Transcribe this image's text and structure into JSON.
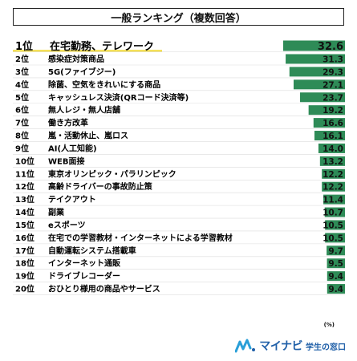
{
  "title": "一般ランキング（複数回答）",
  "unit": "(%)",
  "logo": {
    "brand": "マイナビ",
    "sub": "学生の窓口"
  },
  "colors": {
    "bar": "#2e8b57",
    "top_bar": "#2e8b57",
    "highlight": "#f5e15a",
    "frame": "#222222"
  },
  "chart_data": {
    "type": "bar",
    "orientation": "horizontal",
    "title": "一般ランキング（複数回答）",
    "xlim": [
      0,
      35
    ],
    "grid": false,
    "ranks": [
      "1位",
      "2位",
      "3位",
      "4位",
      "5位",
      "6位",
      "7位",
      "8位",
      "9位",
      "10位",
      "11位",
      "12位",
      "13位",
      "14位",
      "15位",
      "16位",
      "17位",
      "18位",
      "19位",
      "20位"
    ],
    "categories": [
      "在宅勤務、テレワーク",
      "感染症対策商品",
      "5G(ファイブジー)",
      "除菌、空気をきれいにする商品",
      "キャッシュレス決済(QRコード決済等)",
      "無人レジ・無人店舗",
      "働き方改革",
      "嵐・活動休止、嵐ロス",
      "AI(人工知能)",
      "WEB面接",
      "東京オリンピック・パラリンピック",
      "高齢ドライバーの事故防止策",
      "テイクアウト",
      "副業",
      "eスポーツ",
      "在宅での学習教材・インターネットによる学習教材",
      "自動運転システム搭載車",
      "インターネット通販",
      "ドライブレコーダー",
      "おひとり様用の商品やサービス"
    ],
    "values": [
      32.6,
      31.3,
      29.3,
      27.1,
      23.7,
      19.2,
      16.6,
      16.1,
      14.0,
      13.2,
      12.2,
      12.2,
      11.4,
      10.7,
      10.5,
      10.5,
      9.7,
      9.5,
      9.4,
      9.4
    ],
    "value_labels": [
      "32.6",
      "31.3",
      "29.3",
      "27.1",
      "23.7",
      "19.2",
      "16.6",
      "16.1",
      "14.0",
      "13.2",
      "12.2",
      "12.2",
      "11.4",
      "10.7",
      "10.5",
      "10.5",
      "9.7",
      "9.5",
      "9.4",
      "9.4"
    ]
  }
}
